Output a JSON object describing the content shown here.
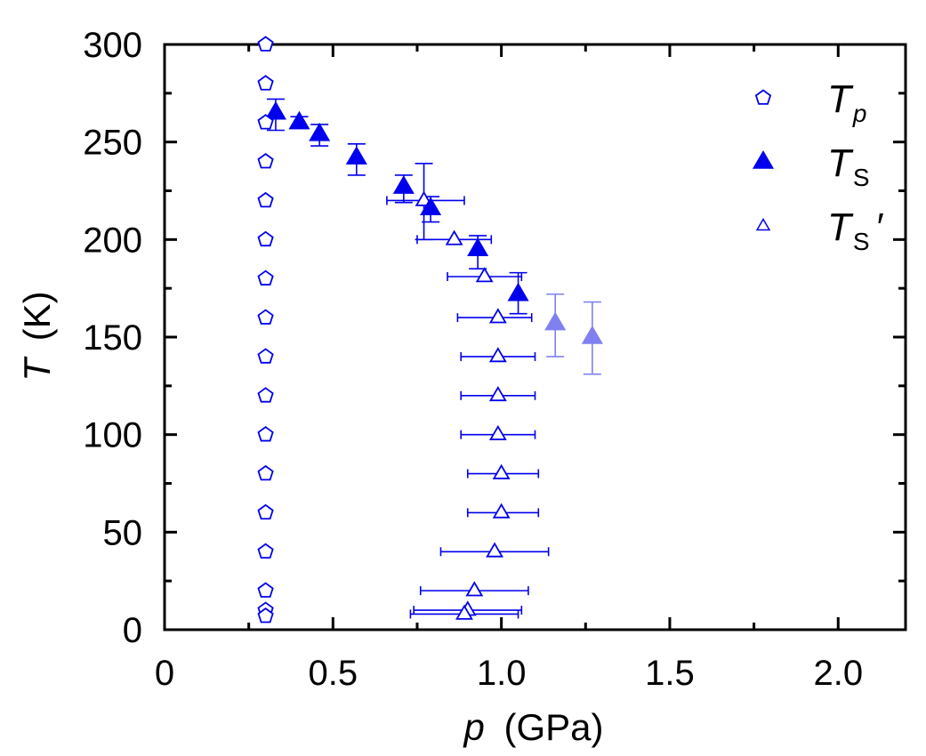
{
  "chart_data": {
    "type": "scatter",
    "xlabel_var": "p",
    "xlabel_unit": "(GPa)",
    "ylabel_var": "T",
    "ylabel_unit": "(K)",
    "xlim": [
      0,
      2.2
    ],
    "ylim": [
      0,
      300
    ],
    "xticks": [
      0,
      0.5,
      1.0,
      1.5,
      2.0
    ],
    "xtick_labels": [
      "0",
      "0.5",
      "1.0",
      "1.5",
      "2.0"
    ],
    "yticks": [
      0,
      50,
      100,
      150,
      200,
      250,
      300
    ],
    "ytick_labels": [
      "0",
      "50",
      "100",
      "150",
      "200",
      "250",
      "300"
    ],
    "grid": false,
    "legend_position": "top-right",
    "colors": {
      "dark": "#0000ee",
      "light": "#8080f0"
    },
    "series": [
      {
        "name": "Tp",
        "legend_main": "T",
        "legend_sub": "p",
        "legend_sub_italic": true,
        "legend_suffix": "",
        "marker": "pentagon-open",
        "points": [
          {
            "x": 0.3,
            "y": 300
          },
          {
            "x": 0.3,
            "y": 280
          },
          {
            "x": 0.3,
            "y": 260
          },
          {
            "x": 0.3,
            "y": 240
          },
          {
            "x": 0.3,
            "y": 220
          },
          {
            "x": 0.3,
            "y": 200
          },
          {
            "x": 0.3,
            "y": 180
          },
          {
            "x": 0.3,
            "y": 160
          },
          {
            "x": 0.3,
            "y": 140
          },
          {
            "x": 0.3,
            "y": 120
          },
          {
            "x": 0.3,
            "y": 100
          },
          {
            "x": 0.3,
            "y": 80
          },
          {
            "x": 0.3,
            "y": 60
          },
          {
            "x": 0.3,
            "y": 40
          },
          {
            "x": 0.3,
            "y": 20
          },
          {
            "x": 0.3,
            "y": 10
          },
          {
            "x": 0.3,
            "y": 7
          }
        ]
      },
      {
        "name": "TS",
        "legend_main": "T",
        "legend_sub": "S",
        "legend_sub_italic": false,
        "legend_suffix": "",
        "marker": "triangle-filled",
        "points": [
          {
            "x": 0.33,
            "y": 265,
            "ylo": 256,
            "yhi": 272,
            "shade": "dark"
          },
          {
            "x": 0.4,
            "y": 260,
            "ylo": 257,
            "yhi": 263,
            "shade": "dark"
          },
          {
            "x": 0.46,
            "y": 254,
            "ylo": 248,
            "yhi": 259,
            "shade": "dark"
          },
          {
            "x": 0.57,
            "y": 242,
            "ylo": 233,
            "yhi": 249,
            "shade": "dark"
          },
          {
            "x": 0.71,
            "y": 227,
            "ylo": 219,
            "yhi": 233,
            "shade": "dark"
          },
          {
            "x": 0.79,
            "y": 216,
            "ylo": 209,
            "yhi": 222,
            "shade": "dark"
          },
          {
            "x": 0.93,
            "y": 195,
            "ylo": 185,
            "yhi": 202,
            "shade": "dark"
          },
          {
            "x": 1.05,
            "y": 172,
            "ylo": 162,
            "yhi": 183,
            "shade": "dark"
          },
          {
            "x": 1.16,
            "y": 157,
            "ylo": 140,
            "yhi": 172,
            "shade": "light"
          },
          {
            "x": 1.27,
            "y": 150,
            "ylo": 131,
            "yhi": 168,
            "shade": "light"
          }
        ]
      },
      {
        "name": "TS'",
        "legend_main": "T",
        "legend_sub": "S",
        "legend_sub_italic": false,
        "legend_suffix": "′",
        "marker": "triangle-open",
        "points": [
          {
            "x": 0.77,
            "y": 220,
            "xlo": 0.66,
            "xhi": 0.89,
            "ylo": 200,
            "yhi": 239
          },
          {
            "x": 0.86,
            "y": 200,
            "xlo": 0.75,
            "xhi": 0.97
          },
          {
            "x": 0.95,
            "y": 181,
            "xlo": 0.84,
            "xhi": 1.06
          },
          {
            "x": 0.99,
            "y": 160,
            "xlo": 0.87,
            "xhi": 1.09
          },
          {
            "x": 0.99,
            "y": 140,
            "xlo": 0.88,
            "xhi": 1.1
          },
          {
            "x": 0.99,
            "y": 120,
            "xlo": 0.88,
            "xhi": 1.1
          },
          {
            "x": 0.99,
            "y": 100,
            "xlo": 0.88,
            "xhi": 1.1
          },
          {
            "x": 1.0,
            "y": 80,
            "xlo": 0.9,
            "xhi": 1.11
          },
          {
            "x": 1.0,
            "y": 60,
            "xlo": 0.9,
            "xhi": 1.11
          },
          {
            "x": 0.98,
            "y": 40,
            "xlo": 0.82,
            "xhi": 1.14
          },
          {
            "x": 0.92,
            "y": 20,
            "xlo": 0.76,
            "xhi": 1.08
          },
          {
            "x": 0.9,
            "y": 10,
            "xlo": 0.74,
            "xhi": 1.06
          },
          {
            "x": 0.89,
            "y": 8,
            "xlo": 0.73,
            "xhi": 1.05
          }
        ]
      }
    ]
  }
}
